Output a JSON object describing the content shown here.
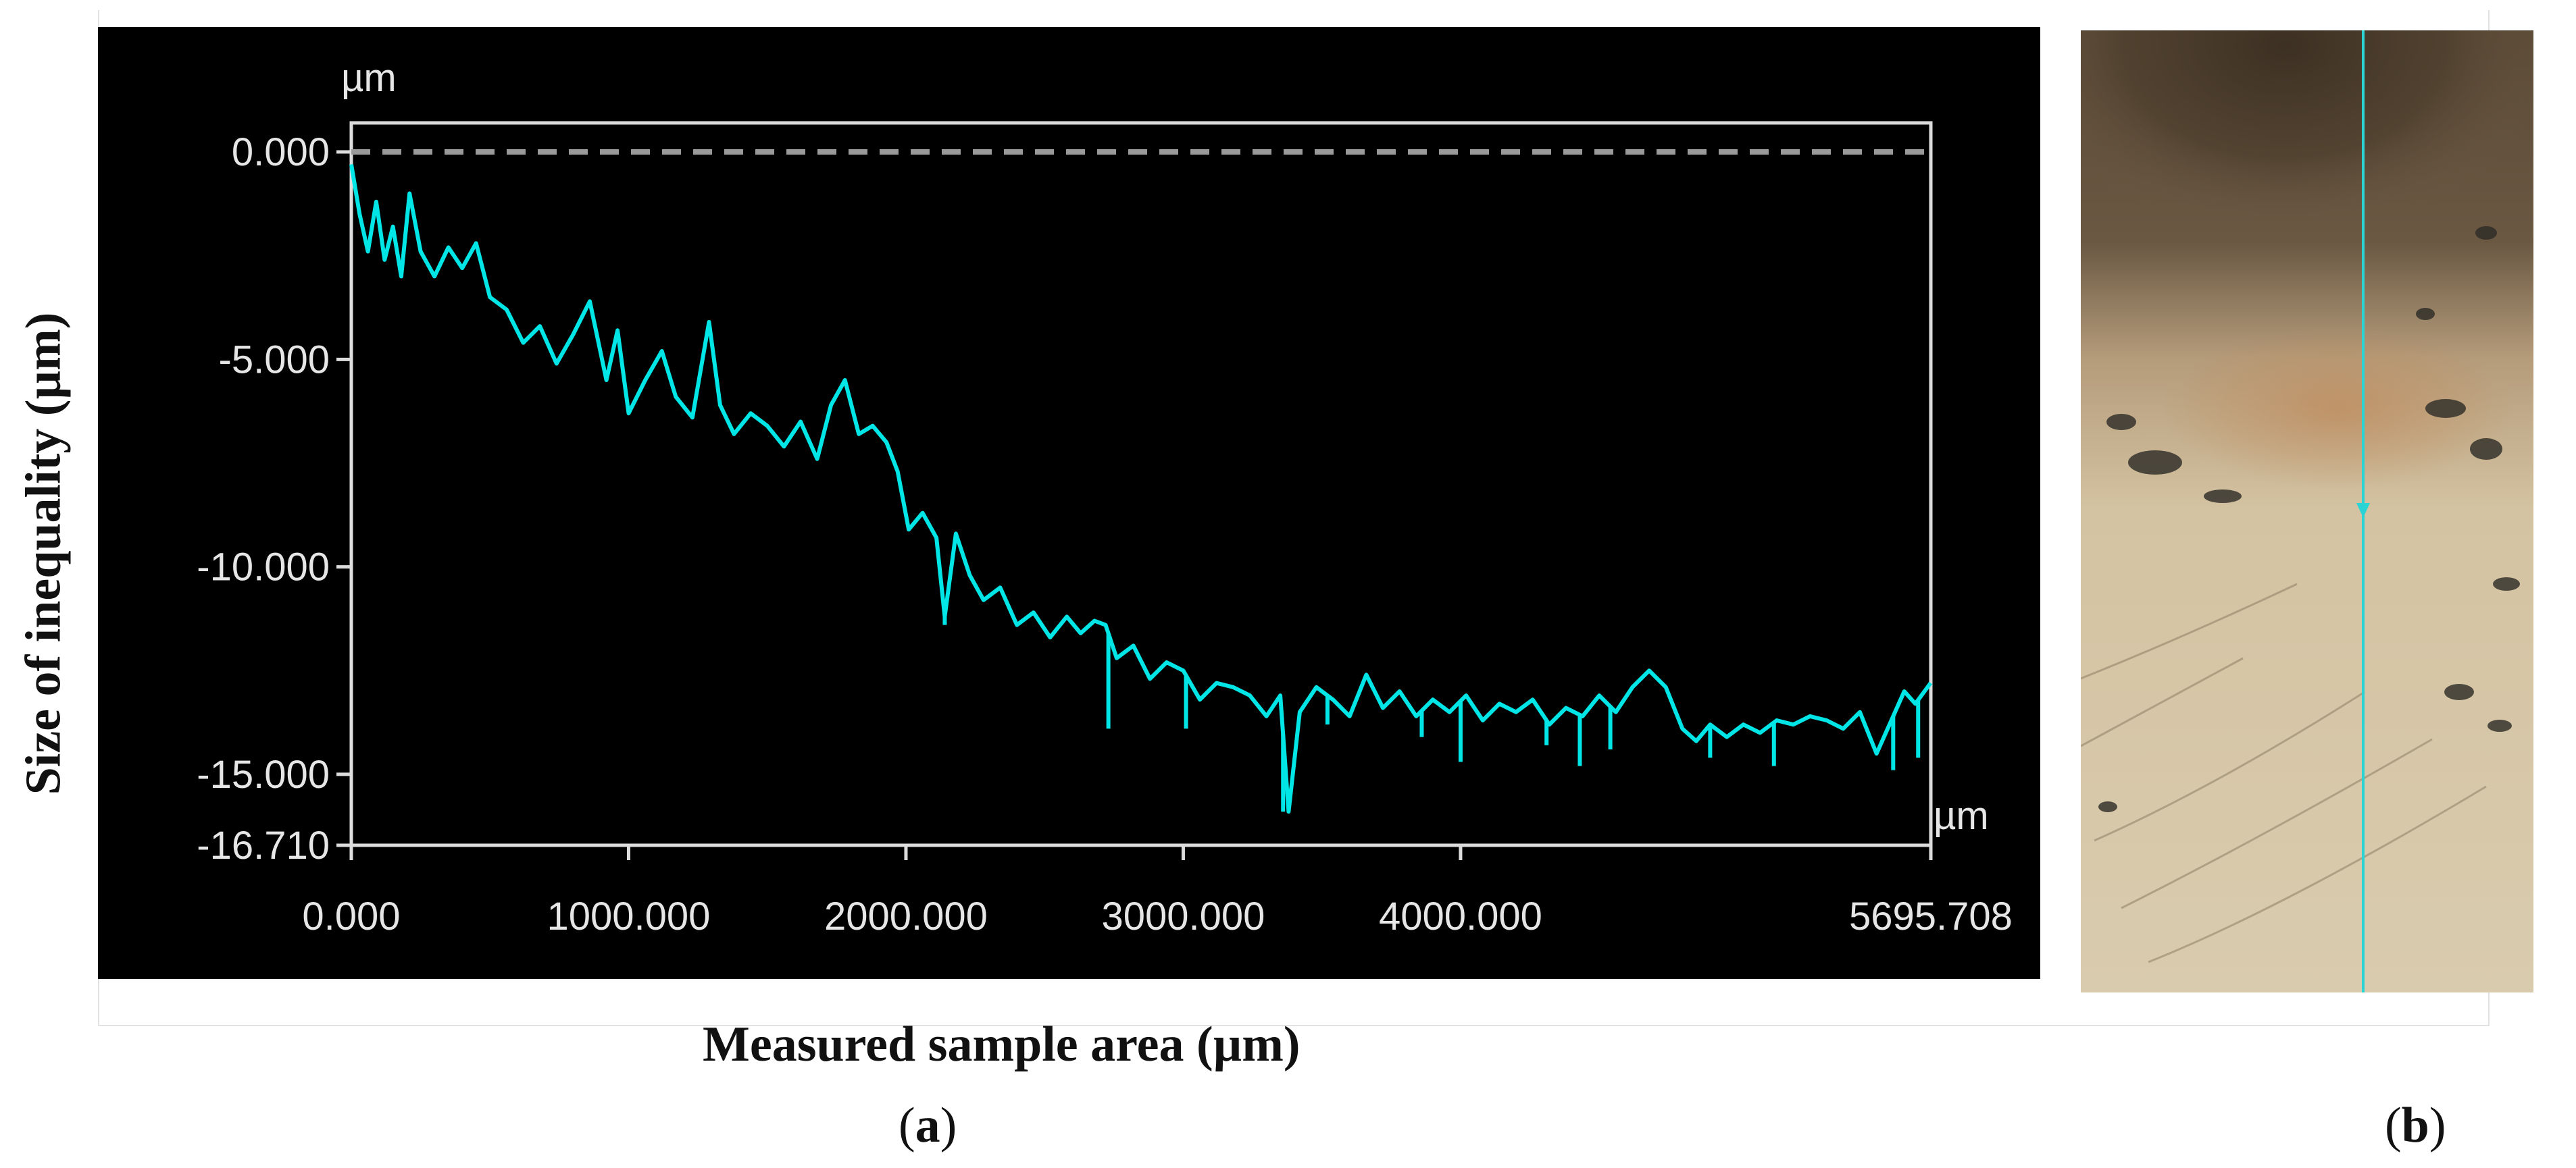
{
  "chart_data": {
    "type": "line",
    "xlabel": "Measured sample area (µm)",
    "ylabel": "Size of inequality (µm)",
    "x_unit": "µm",
    "y_unit": "µm",
    "xlim": [
      0.0,
      5695.708
    ],
    "ylim": [
      -16.71,
      0.0
    ],
    "x_ticks": [
      "0.000",
      "1000.000",
      "2000.000",
      "3000.000",
      "4000.000",
      "5695.708"
    ],
    "x_tick_values": [
      0,
      1000,
      2000,
      3000,
      4000,
      5695.708
    ],
    "y_ticks": [
      "0.000",
      "-5.000",
      "-10.000",
      "-15.000",
      "-16.710"
    ],
    "y_tick_values": [
      0,
      -5,
      -10,
      -15,
      -16.71
    ],
    "reference_line": {
      "y": 0.0,
      "style": "dashed"
    },
    "grid": false,
    "background": "#000000",
    "series": [
      {
        "color": "#00e5e5",
        "x": [
          0,
          30,
          60,
          90,
          120,
          150,
          180,
          210,
          250,
          300,
          350,
          400,
          450,
          500,
          560,
          620,
          680,
          740,
          800,
          860,
          920,
          960,
          1000,
          1060,
          1120,
          1170,
          1230,
          1290,
          1330,
          1380,
          1440,
          1500,
          1560,
          1620,
          1680,
          1730,
          1780,
          1830,
          1880,
          1930,
          1970,
          2010,
          2060,
          2110,
          2140,
          2180,
          2230,
          2280,
          2340,
          2400,
          2460,
          2520,
          2580,
          2630,
          2680,
          2720,
          2760,
          2820,
          2880,
          2940,
          3000,
          3060,
          3120,
          3180,
          3240,
          3300,
          3350,
          3380,
          3420,
          3480,
          3540,
          3600,
          3660,
          3720,
          3780,
          3840,
          3900,
          3960,
          4020,
          4080,
          4140,
          4200,
          4260,
          4320,
          4380,
          4440,
          4500,
          4560,
          4620,
          4680,
          4740,
          4800,
          4850,
          4900,
          4960,
          5020,
          5080,
          5140,
          5200,
          5260,
          5320,
          5380,
          5440,
          5500,
          5560,
          5600,
          5640,
          5695
        ],
        "y": [
          -0.3,
          -1.5,
          -2.4,
          -1.2,
          -2.6,
          -1.8,
          -3.0,
          -1.0,
          -2.4,
          -3.0,
          -2.3,
          -2.8,
          -2.2,
          -3.5,
          -3.8,
          -4.6,
          -4.2,
          -5.1,
          -4.4,
          -3.6,
          -5.5,
          -4.3,
          -6.3,
          -5.5,
          -4.8,
          -5.9,
          -6.4,
          -4.1,
          -6.1,
          -6.8,
          -6.3,
          -6.6,
          -7.1,
          -6.5,
          -7.4,
          -6.1,
          -5.5,
          -6.8,
          -6.6,
          -7.0,
          -7.7,
          -9.1,
          -8.7,
          -9.3,
          -11.2,
          -9.2,
          -10.2,
          -10.8,
          -10.5,
          -11.4,
          -11.1,
          -11.7,
          -11.2,
          -11.6,
          -11.3,
          -11.4,
          -12.2,
          -11.9,
          -12.7,
          -12.3,
          -12.5,
          -13.2,
          -12.8,
          -12.9,
          -13.1,
          -13.6,
          -13.1,
          -15.9,
          -13.5,
          -12.9,
          -13.2,
          -13.6,
          -12.6,
          -13.4,
          -13.0,
          -13.6,
          -13.2,
          -13.5,
          -13.1,
          -13.7,
          -13.3,
          -13.5,
          -13.2,
          -13.8,
          -13.4,
          -13.6,
          -13.1,
          -13.5,
          -12.9,
          -12.5,
          -12.9,
          -13.9,
          -14.2,
          -13.8,
          -14.1,
          -13.8,
          -14.0,
          -13.7,
          -13.8,
          -13.6,
          -13.7,
          -13.9,
          -13.5,
          -14.5,
          -13.6,
          -13.0,
          -13.3,
          -12.8
        ]
      }
    ],
    "dips": [
      {
        "x": 2140,
        "y": -11.4
      },
      {
        "x": 2730,
        "y": -13.9
      },
      {
        "x": 3010,
        "y": -13.9
      },
      {
        "x": 3360,
        "y": -15.9
      },
      {
        "x": 3520,
        "y": -13.8
      },
      {
        "x": 3860,
        "y": -14.1
      },
      {
        "x": 4000,
        "y": -14.7
      },
      {
        "x": 4310,
        "y": -14.3
      },
      {
        "x": 4430,
        "y": -14.8
      },
      {
        "x": 4540,
        "y": -14.4
      },
      {
        "x": 4900,
        "y": -14.6
      },
      {
        "x": 5130,
        "y": -14.8
      },
      {
        "x": 5560,
        "y": -14.9
      },
      {
        "x": 5650,
        "y": -14.6
      }
    ]
  },
  "figure": {
    "xlabel": "Measured sample area (µm)",
    "ylabel": "Size of inequality (µm)",
    "panel_a": "a",
    "panel_b": "b",
    "colors": {
      "plot_bg": "#000000",
      "frame": "#dcdcdc",
      "tick_text": "#e6e6e6",
      "trace": "#00e5e5",
      "dashed_ref": "#9a9a9a"
    }
  },
  "photo": {
    "description_icon": "microscope-sample-photo",
    "scan_line_color": "#2bd4d4"
  }
}
